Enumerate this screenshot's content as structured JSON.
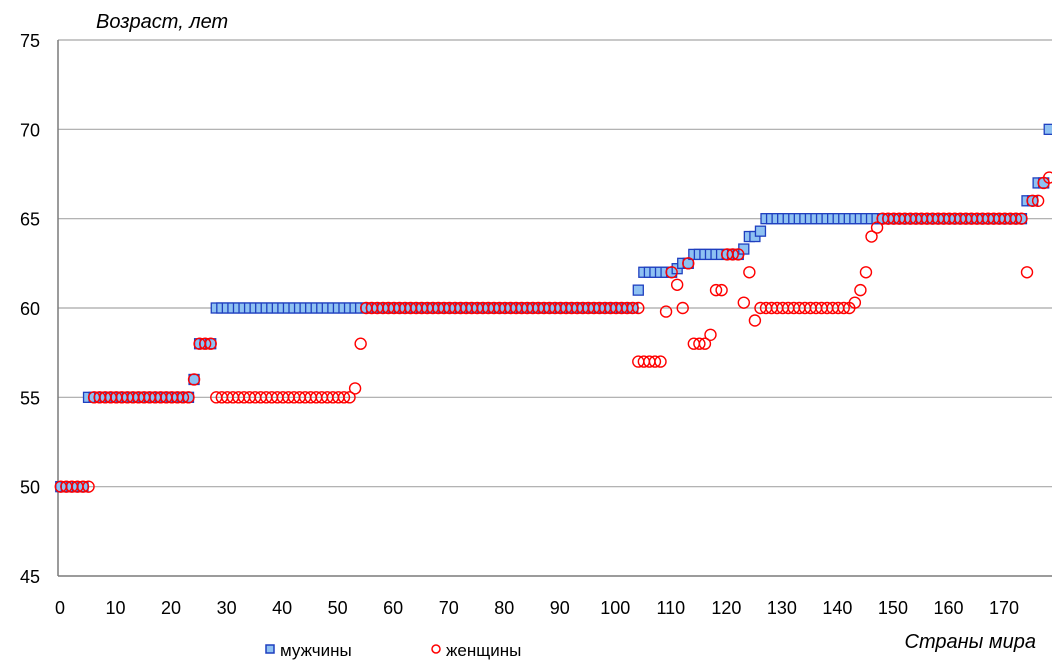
{
  "chart_data": {
    "type": "scatter",
    "ylabel": "Возраст, лет",
    "xlabel": "Страны мира",
    "xlim": [
      0,
      178
    ],
    "ylim": [
      45,
      75
    ],
    "xticks": [
      0,
      10,
      20,
      30,
      40,
      50,
      60,
      70,
      80,
      90,
      100,
      110,
      120,
      130,
      140,
      150,
      160,
      170
    ],
    "yticks": [
      45,
      50,
      55,
      60,
      65,
      70,
      75
    ],
    "grid": "horizontal",
    "legend_position": "bottom-center",
    "series": [
      {
        "name": "мужчины",
        "marker": "square",
        "stroke": "#1f3fbf",
        "fill": "#8ec1f2",
        "runs": [
          {
            "x_from": 0,
            "x_to": 4,
            "y": 50
          },
          {
            "x_from": 5,
            "x_to": 23,
            "y": 55
          },
          {
            "x_from": 24,
            "x_to": 24,
            "y": 56
          },
          {
            "x_from": 25,
            "x_to": 27,
            "y": 58
          },
          {
            "x_from": 28,
            "x_to": 103,
            "y": 60
          }
        ],
        "points": [
          [
            104,
            61
          ],
          [
            105,
            62
          ],
          [
            106,
            62
          ],
          [
            107,
            62
          ],
          [
            108,
            62
          ],
          [
            109,
            62
          ],
          [
            110,
            62
          ],
          [
            111,
            62.2
          ],
          [
            112,
            62.5
          ],
          [
            113,
            62.5
          ],
          [
            114,
            63
          ],
          [
            115,
            63
          ],
          [
            116,
            63
          ],
          [
            117,
            63
          ],
          [
            118,
            63
          ],
          [
            119,
            63
          ],
          [
            120,
            63
          ],
          [
            121,
            63
          ],
          [
            122,
            63
          ],
          [
            123,
            63.3
          ],
          [
            124,
            64
          ],
          [
            125,
            64
          ],
          [
            126,
            64.3
          ]
        ],
        "runs2": [
          {
            "x_from": 127,
            "x_to": 173,
            "y": 65
          },
          {
            "x_from": 174,
            "x_to": 174,
            "y": 66
          },
          {
            "x_from": 175,
            "x_to": 175,
            "y": 66
          },
          {
            "x_from": 176,
            "x_to": 176,
            "y": 67
          },
          {
            "x_from": 177,
            "x_to": 177,
            "y": 67
          },
          {
            "x_from": 178,
            "x_to": 178,
            "y": 70
          }
        ]
      },
      {
        "name": "женщины",
        "marker": "circle",
        "stroke": "#ff0000",
        "fill": "none",
        "runs": [
          {
            "x_from": 0,
            "x_to": 5,
            "y": 50
          },
          {
            "x_from": 6,
            "x_to": 23,
            "y": 55
          },
          {
            "x_from": 24,
            "x_to": 24,
            "y": 56
          },
          {
            "x_from": 25,
            "x_to": 27,
            "y": 58
          },
          {
            "x_from": 28,
            "x_to": 52,
            "y": 55
          }
        ],
        "points": [
          [
            53,
            55.5
          ],
          [
            54,
            58
          ]
        ],
        "runs2": [
          {
            "x_from": 55,
            "x_to": 104,
            "y": 60
          }
        ],
        "points2": [
          [
            104,
            57
          ],
          [
            105,
            57
          ],
          [
            106,
            57
          ],
          [
            107,
            57
          ],
          [
            108,
            57
          ],
          [
            109,
            59.8
          ],
          [
            110,
            62
          ],
          [
            111,
            61.3
          ],
          [
            112,
            60
          ],
          [
            113,
            62.5
          ],
          [
            114,
            58
          ],
          [
            115,
            58
          ],
          [
            116,
            58
          ],
          [
            117,
            58.5
          ],
          [
            118,
            61
          ],
          [
            119,
            61
          ],
          [
            120,
            63
          ],
          [
            121,
            63
          ],
          [
            122,
            63
          ],
          [
            123,
            60.3
          ],
          [
            124,
            62
          ],
          [
            125,
            59.3
          ],
          [
            126,
            60
          ],
          [
            127,
            60
          ],
          [
            128,
            60
          ],
          [
            129,
            60
          ],
          [
            130,
            60
          ],
          [
            131,
            60
          ],
          [
            132,
            60
          ],
          [
            133,
            60
          ],
          [
            134,
            60
          ],
          [
            135,
            60
          ],
          [
            136,
            60
          ],
          [
            137,
            60
          ],
          [
            138,
            60
          ],
          [
            139,
            60
          ],
          [
            140,
            60
          ],
          [
            141,
            60
          ],
          [
            142,
            60
          ],
          [
            143,
            60.3
          ],
          [
            144,
            61
          ],
          [
            145,
            62
          ],
          [
            146,
            64
          ],
          [
            147,
            64.5
          ]
        ],
        "runs3": [
          {
            "x_from": 148,
            "x_to": 173,
            "y": 65
          }
        ],
        "points3": [
          [
            174,
            62
          ],
          [
            175,
            66
          ],
          [
            176,
            66
          ],
          [
            177,
            67
          ],
          [
            178,
            67.3
          ]
        ]
      }
    ]
  }
}
